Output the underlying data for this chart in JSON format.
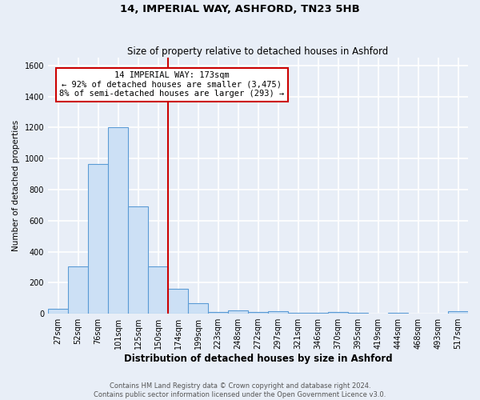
{
  "title1": "14, IMPERIAL WAY, ASHFORD, TN23 5HB",
  "title2": "Size of property relative to detached houses in Ashford",
  "xlabel": "Distribution of detached houses by size in Ashford",
  "ylabel": "Number of detached properties",
  "footer1": "Contains HM Land Registry data © Crown copyright and database right 2024.",
  "footer2": "Contains public sector information licensed under the Open Government Licence v3.0.",
  "categories": [
    "27sqm",
    "52sqm",
    "76sqm",
    "101sqm",
    "125sqm",
    "150sqm",
    "174sqm",
    "199sqm",
    "223sqm",
    "248sqm",
    "272sqm",
    "297sqm",
    "321sqm",
    "346sqm",
    "370sqm",
    "395sqm",
    "419sqm",
    "444sqm",
    "468sqm",
    "493sqm",
    "517sqm"
  ],
  "values": [
    30,
    305,
    965,
    1200,
    690,
    305,
    160,
    70,
    10,
    20,
    10,
    15,
    5,
    5,
    10,
    5,
    0,
    5,
    0,
    0,
    15
  ],
  "bar_color": "#cce0f5",
  "bar_edge_color": "#5b9bd5",
  "property_line_label": "14 IMPERIAL WAY: 173sqm",
  "annotation_line1": "← 92% of detached houses are smaller (3,475)",
  "annotation_line2": "8% of semi-detached houses are larger (293) →",
  "annotation_box_color": "#ffffff",
  "annotation_border_color": "#cc0000",
  "line_color": "#cc0000",
  "ylim": [
    0,
    1650
  ],
  "yticks": [
    0,
    200,
    400,
    600,
    800,
    1000,
    1200,
    1400,
    1600
  ],
  "background_color": "#e8eef7",
  "plot_bg_color": "#e8eef7",
  "grid_color": "#ffffff",
  "property_bar_index": 6,
  "title1_fontsize": 9.5,
  "title2_fontsize": 8.5,
  "xlabel_fontsize": 8.5,
  "ylabel_fontsize": 7.5,
  "tick_fontsize": 7,
  "annotation_fontsize": 7.5,
  "footer_fontsize": 6
}
